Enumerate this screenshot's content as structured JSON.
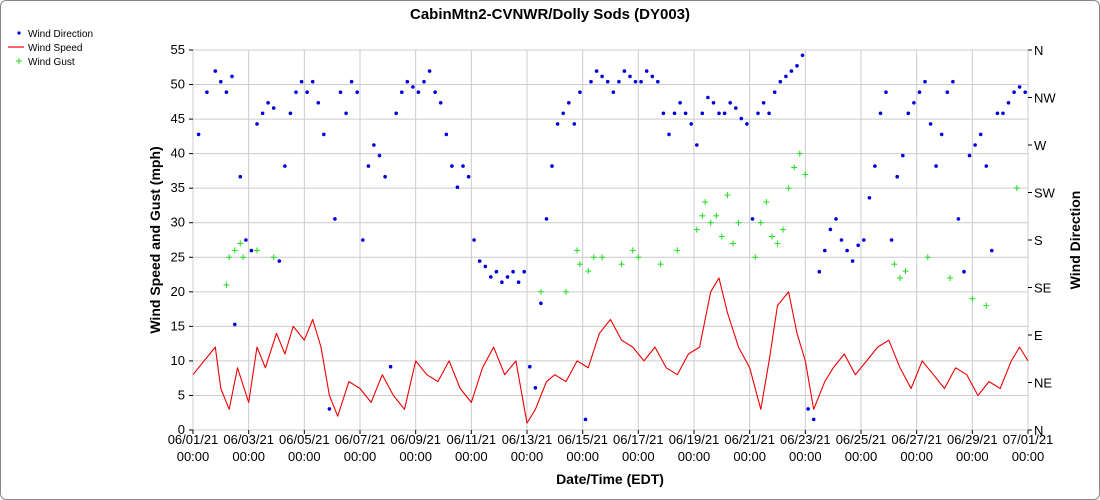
{
  "chart_data": {
    "type": "line",
    "title": "CabinMtn2-CVNWR/Dolly Sods (DY003)",
    "xlabel": "Date/Time (EDT)",
    "ylabel": "Wind Speed and Gust (mph)",
    "y2label": "Wind Direction",
    "ylim": [
      0,
      55
    ],
    "yticks": [
      "0",
      "5",
      "10",
      "15",
      "20",
      "25",
      "30",
      "35",
      "40",
      "45",
      "50",
      "55"
    ],
    "y2ticks": [
      "N",
      "NE",
      "E",
      "SE",
      "S",
      "SW",
      "W",
      "NW",
      "N"
    ],
    "xlim_days": [
      0,
      30
    ],
    "xticks": [
      {
        "day": 0,
        "date": "06/01/21",
        "time": "00:00"
      },
      {
        "day": 2,
        "date": "06/03/21",
        "time": "00:00"
      },
      {
        "day": 4,
        "date": "06/05/21",
        "time": "00:00"
      },
      {
        "day": 6,
        "date": "06/07/21",
        "time": "00:00"
      },
      {
        "day": 8,
        "date": "06/09/21",
        "time": "00:00"
      },
      {
        "day": 10,
        "date": "06/11/21",
        "time": "00:00"
      },
      {
        "day": 12,
        "date": "06/13/21",
        "time": "00:00"
      },
      {
        "day": 14,
        "date": "06/15/21",
        "time": "00:00"
      },
      {
        "day": 16,
        "date": "06/17/21",
        "time": "00:00"
      },
      {
        "day": 18,
        "date": "06/19/21",
        "time": "00:00"
      },
      {
        "day": 20,
        "date": "06/21/21",
        "time": "00:00"
      },
      {
        "day": 22,
        "date": "06/23/21",
        "time": "00:00"
      },
      {
        "day": 24,
        "date": "06/25/21",
        "time": "00:00"
      },
      {
        "day": 26,
        "date": "06/27/21",
        "time": "00:00"
      },
      {
        "day": 28,
        "date": "06/29/21",
        "time": "00:00"
      },
      {
        "day": 30,
        "date": "07/01/21",
        "time": "00:00"
      }
    ],
    "grid": true,
    "legend_position": "top-left",
    "series": [
      {
        "name": "Wind Direction",
        "kind": "dots",
        "axis": "right",
        "color": "#0000dd",
        "points_day_deg": [
          [
            0.2,
            280
          ],
          [
            0.5,
            320
          ],
          [
            0.8,
            340
          ],
          [
            1.0,
            330
          ],
          [
            1.2,
            320
          ],
          [
            1.4,
            335
          ],
          [
            1.5,
            100
          ],
          [
            1.7,
            240
          ],
          [
            1.9,
            180
          ],
          [
            2.1,
            170
          ],
          [
            2.3,
            290
          ],
          [
            2.5,
            300
          ],
          [
            2.7,
            310
          ],
          [
            2.9,
            305
          ],
          [
            3.1,
            160
          ],
          [
            3.3,
            250
          ],
          [
            3.5,
            300
          ],
          [
            3.7,
            320
          ],
          [
            3.9,
            330
          ],
          [
            4.1,
            320
          ],
          [
            4.3,
            330
          ],
          [
            4.5,
            310
          ],
          [
            4.7,
            280
          ],
          [
            4.9,
            20
          ],
          [
            5.1,
            200
          ],
          [
            5.3,
            320
          ],
          [
            5.5,
            300
          ],
          [
            5.7,
            330
          ],
          [
            5.9,
            320
          ],
          [
            6.1,
            180
          ],
          [
            6.3,
            250
          ],
          [
            6.5,
            270
          ],
          [
            6.7,
            260
          ],
          [
            6.9,
            240
          ],
          [
            7.1,
            60
          ],
          [
            7.3,
            300
          ],
          [
            7.5,
            320
          ],
          [
            7.7,
            330
          ],
          [
            7.9,
            325
          ],
          [
            8.1,
            320
          ],
          [
            8.3,
            330
          ],
          [
            8.5,
            340
          ],
          [
            8.7,
            320
          ],
          [
            8.9,
            310
          ],
          [
            9.1,
            280
          ],
          [
            9.3,
            250
          ],
          [
            9.5,
            230
          ],
          [
            9.7,
            250
          ],
          [
            9.9,
            240
          ],
          [
            10.1,
            180
          ],
          [
            10.3,
            160
          ],
          [
            10.5,
            155
          ],
          [
            10.7,
            145
          ],
          [
            10.9,
            150
          ],
          [
            11.1,
            140
          ],
          [
            11.3,
            145
          ],
          [
            11.5,
            150
          ],
          [
            11.7,
            140
          ],
          [
            11.9,
            150
          ],
          [
            12.1,
            60
          ],
          [
            12.3,
            40
          ],
          [
            12.5,
            120
          ],
          [
            12.7,
            200
          ],
          [
            12.9,
            250
          ],
          [
            13.1,
            290
          ],
          [
            13.3,
            300
          ],
          [
            13.5,
            310
          ],
          [
            13.7,
            290
          ],
          [
            13.9,
            320
          ],
          [
            14.1,
            10
          ],
          [
            14.3,
            330
          ],
          [
            14.5,
            340
          ],
          [
            14.7,
            335
          ],
          [
            14.9,
            330
          ],
          [
            15.1,
            320
          ],
          [
            15.3,
            330
          ],
          [
            15.5,
            340
          ],
          [
            15.7,
            335
          ],
          [
            15.9,
            330
          ],
          [
            16.1,
            330
          ],
          [
            16.3,
            340
          ],
          [
            16.5,
            335
          ],
          [
            16.7,
            330
          ],
          [
            16.9,
            300
          ],
          [
            17.1,
            280
          ],
          [
            17.3,
            300
          ],
          [
            17.5,
            310
          ],
          [
            17.7,
            300
          ],
          [
            17.9,
            290
          ],
          [
            18.1,
            270
          ],
          [
            18.3,
            300
          ],
          [
            18.5,
            315
          ],
          [
            18.7,
            310
          ],
          [
            18.9,
            300
          ],
          [
            19.1,
            300
          ],
          [
            19.3,
            310
          ],
          [
            19.5,
            305
          ],
          [
            19.7,
            295
          ],
          [
            19.9,
            290
          ],
          [
            20.1,
            200
          ],
          [
            20.3,
            300
          ],
          [
            20.5,
            310
          ],
          [
            20.7,
            300
          ],
          [
            20.9,
            320
          ],
          [
            21.1,
            330
          ],
          [
            21.3,
            335
          ],
          [
            21.5,
            340
          ],
          [
            21.7,
            345
          ],
          [
            21.9,
            355
          ],
          [
            22.1,
            20
          ],
          [
            22.3,
            10
          ],
          [
            22.5,
            150
          ],
          [
            22.7,
            170
          ],
          [
            22.9,
            190
          ],
          [
            23.1,
            200
          ],
          [
            23.3,
            180
          ],
          [
            23.5,
            170
          ],
          [
            23.7,
            160
          ],
          [
            23.9,
            175
          ],
          [
            24.1,
            180
          ],
          [
            24.3,
            220
          ],
          [
            24.5,
            250
          ],
          [
            24.7,
            300
          ],
          [
            24.9,
            320
          ],
          [
            25.1,
            180
          ],
          [
            25.3,
            240
          ],
          [
            25.5,
            260
          ],
          [
            25.7,
            300
          ],
          [
            25.9,
            310
          ],
          [
            26.1,
            320
          ],
          [
            26.3,
            330
          ],
          [
            26.5,
            290
          ],
          [
            26.7,
            250
          ],
          [
            26.9,
            280
          ],
          [
            27.1,
            320
          ],
          [
            27.3,
            330
          ],
          [
            27.5,
            200
          ],
          [
            27.7,
            150
          ],
          [
            27.9,
            260
          ],
          [
            28.1,
            270
          ],
          [
            28.3,
            280
          ],
          [
            28.5,
            250
          ],
          [
            28.7,
            170
          ],
          [
            28.9,
            300
          ],
          [
            29.1,
            300
          ],
          [
            29.3,
            310
          ],
          [
            29.5,
            320
          ],
          [
            29.7,
            325
          ],
          [
            29.9,
            320
          ]
        ]
      },
      {
        "name": "Wind Speed",
        "kind": "line",
        "axis": "left",
        "color": "#ee0000",
        "points_day_mph": [
          [
            0.0,
            8
          ],
          [
            0.4,
            10
          ],
          [
            0.8,
            12
          ],
          [
            1.0,
            6
          ],
          [
            1.3,
            3
          ],
          [
            1.6,
            9
          ],
          [
            2.0,
            4
          ],
          [
            2.3,
            12
          ],
          [
            2.6,
            9
          ],
          [
            3.0,
            14
          ],
          [
            3.3,
            11
          ],
          [
            3.6,
            15
          ],
          [
            4.0,
            13
          ],
          [
            4.3,
            16
          ],
          [
            4.6,
            12
          ],
          [
            4.9,
            5
          ],
          [
            5.2,
            2
          ],
          [
            5.6,
            7
          ],
          [
            6.0,
            6
          ],
          [
            6.4,
            4
          ],
          [
            6.8,
            8
          ],
          [
            7.2,
            5
          ],
          [
            7.6,
            3
          ],
          [
            8.0,
            10
          ],
          [
            8.4,
            8
          ],
          [
            8.8,
            7
          ],
          [
            9.2,
            10
          ],
          [
            9.6,
            6
          ],
          [
            10.0,
            4
          ],
          [
            10.4,
            9
          ],
          [
            10.8,
            12
          ],
          [
            11.2,
            8
          ],
          [
            11.6,
            10
          ],
          [
            12.0,
            1
          ],
          [
            12.3,
            3
          ],
          [
            12.7,
            7
          ],
          [
            13.0,
            8
          ],
          [
            13.4,
            7
          ],
          [
            13.8,
            10
          ],
          [
            14.2,
            9
          ],
          [
            14.6,
            14
          ],
          [
            15.0,
            16
          ],
          [
            15.4,
            13
          ],
          [
            15.8,
            12
          ],
          [
            16.2,
            10
          ],
          [
            16.6,
            12
          ],
          [
            17.0,
            9
          ],
          [
            17.4,
            8
          ],
          [
            17.8,
            11
          ],
          [
            18.2,
            12
          ],
          [
            18.6,
            20
          ],
          [
            18.9,
            22
          ],
          [
            19.2,
            17
          ],
          [
            19.6,
            12
          ],
          [
            20.0,
            9
          ],
          [
            20.4,
            3
          ],
          [
            20.7,
            10
          ],
          [
            21.0,
            18
          ],
          [
            21.4,
            20
          ],
          [
            21.7,
            14
          ],
          [
            22.0,
            10
          ],
          [
            22.3,
            3
          ],
          [
            22.7,
            7
          ],
          [
            23.0,
            9
          ],
          [
            23.4,
            11
          ],
          [
            23.8,
            8
          ],
          [
            24.2,
            10
          ],
          [
            24.6,
            12
          ],
          [
            25.0,
            13
          ],
          [
            25.4,
            9
          ],
          [
            25.8,
            6
          ],
          [
            26.2,
            10
          ],
          [
            26.6,
            8
          ],
          [
            27.0,
            6
          ],
          [
            27.4,
            9
          ],
          [
            27.8,
            8
          ],
          [
            28.2,
            5
          ],
          [
            28.6,
            7
          ],
          [
            29.0,
            6
          ],
          [
            29.4,
            10
          ],
          [
            29.7,
            12
          ],
          [
            30.0,
            10
          ]
        ]
      },
      {
        "name": "Wind Gust",
        "kind": "plus",
        "axis": "left",
        "color": "#22dd22",
        "points_day_mph": [
          [
            1.2,
            21
          ],
          [
            1.3,
            25
          ],
          [
            1.5,
            26
          ],
          [
            1.7,
            27
          ],
          [
            1.8,
            25
          ],
          [
            2.3,
            26
          ],
          [
            2.9,
            25
          ],
          [
            12.5,
            20
          ],
          [
            13.4,
            20
          ],
          [
            13.8,
            26
          ],
          [
            13.9,
            24
          ],
          [
            14.2,
            23
          ],
          [
            14.4,
            25
          ],
          [
            14.7,
            25
          ],
          [
            15.4,
            24
          ],
          [
            15.8,
            26
          ],
          [
            16.0,
            25
          ],
          [
            16.8,
            24
          ],
          [
            17.4,
            26
          ],
          [
            18.1,
            29
          ],
          [
            18.3,
            31
          ],
          [
            18.4,
            33
          ],
          [
            18.6,
            30
          ],
          [
            18.8,
            31
          ],
          [
            19.0,
            28
          ],
          [
            19.2,
            34
          ],
          [
            19.4,
            27
          ],
          [
            19.6,
            30
          ],
          [
            20.2,
            25
          ],
          [
            20.4,
            30
          ],
          [
            20.6,
            33
          ],
          [
            20.8,
            28
          ],
          [
            21.0,
            27
          ],
          [
            21.2,
            29
          ],
          [
            21.4,
            35
          ],
          [
            21.6,
            38
          ],
          [
            21.8,
            40
          ],
          [
            22.0,
            37
          ],
          [
            25.2,
            24
          ],
          [
            25.4,
            22
          ],
          [
            25.6,
            23
          ],
          [
            26.4,
            25
          ],
          [
            27.2,
            22
          ],
          [
            28.0,
            19
          ],
          [
            28.5,
            18
          ],
          [
            29.6,
            35
          ]
        ]
      }
    ]
  }
}
